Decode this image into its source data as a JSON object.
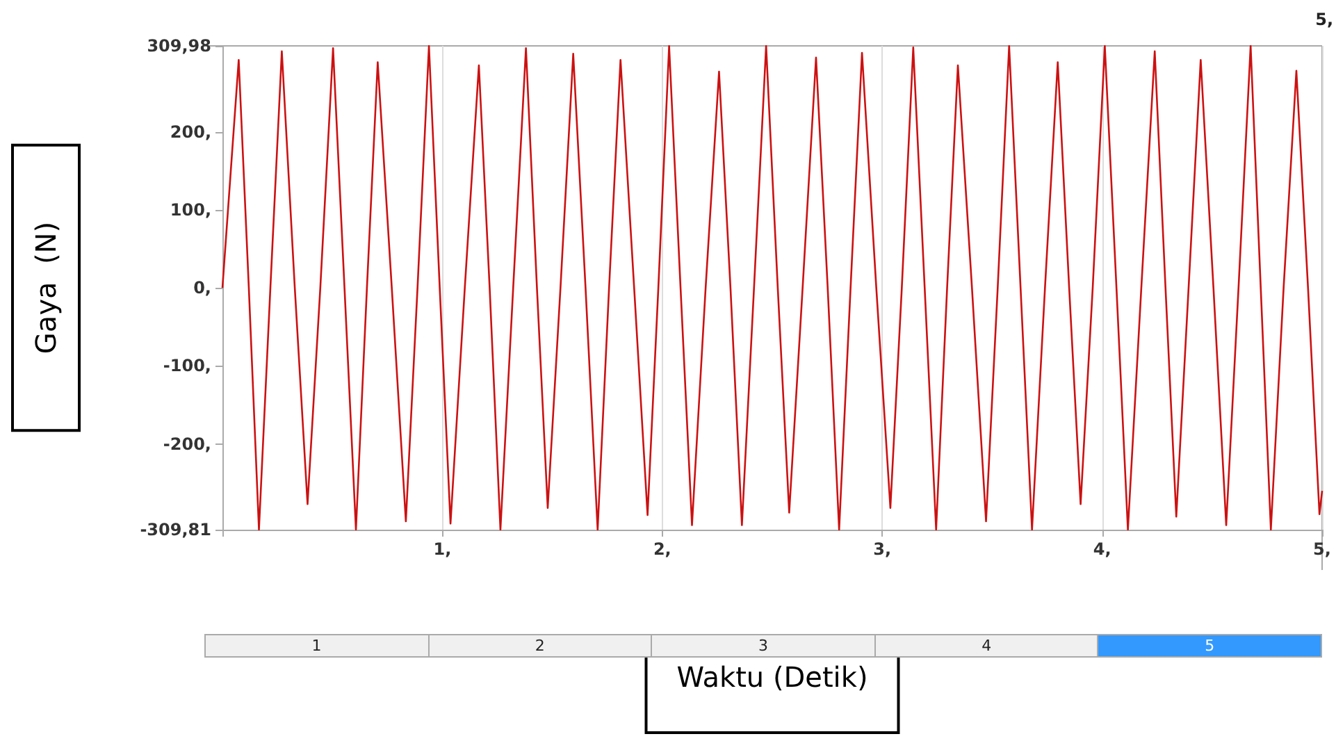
{
  "chart_data": {
    "type": "line",
    "xlabel": "Waktu (Detik)",
    "ylabel": "Gaya  (N)",
    "annotations": [
      "5,",
      "1",
      "2",
      "3",
      "4",
      "5"
    ],
    "xlim": [
      0,
      5
    ],
    "xticks": [
      {
        "value": 0,
        "label": null
      },
      {
        "value": 1,
        "label": "1,"
      },
      {
        "value": 2,
        "label": "2,"
      },
      {
        "value": 3,
        "label": "3,"
      },
      {
        "value": 4,
        "label": "4,"
      },
      {
        "value": 5,
        "label": "5,"
      }
    ],
    "ylim": [
      -309.81,
      309.98
    ],
    "yticks": [
      {
        "value": -309.81,
        "label": "-309,81"
      },
      {
        "value": -200,
        "label": "-200,"
      },
      {
        "value": -100,
        "label": "-100,"
      },
      {
        "value": 0,
        "label": "0,"
      },
      {
        "value": 100,
        "label": "100,"
      },
      {
        "value": 200,
        "label": "200,"
      },
      {
        "value": 309.98,
        "label": "309,98"
      }
    ],
    "grid": "x",
    "marker": "none",
    "line_style": "solid",
    "series": [
      {
        "color": "#cc1111",
        "x": [
          0,
          0.074,
          0.12,
          0.166,
          0.218,
          0.27,
          0.329,
          0.387,
          0.445,
          0.503,
          0.555,
          0.607,
          0.657,
          0.706,
          0.77,
          0.834,
          0.887,
          0.939,
          0.988,
          1.037,
          1.102,
          1.166,
          1.215,
          1.264,
          1.322,
          1.38,
          1.43,
          1.479,
          1.537,
          1.595,
          1.651,
          1.706,
          1.758,
          1.81,
          1.872,
          1.933,
          1.982,
          2.031,
          2.083,
          2.135,
          2.197,
          2.258,
          2.31,
          2.362,
          2.417,
          2.472,
          2.525,
          2.577,
          2.638,
          2.699,
          2.752,
          2.804,
          2.856,
          2.908,
          2.973,
          3.037,
          3.089,
          3.141,
          3.193,
          3.245,
          3.295,
          3.344,
          3.408,
          3.472,
          3.525,
          3.577,
          3.629,
          3.681,
          3.74,
          3.798,
          3.85,
          3.902,
          3.957,
          4.012,
          4.065,
          4.117,
          4.178,
          4.239,
          4.288,
          4.337,
          4.393,
          4.448,
          4.506,
          4.564,
          4.62,
          4.675,
          4.721,
          4.767,
          4.825,
          4.883,
          4.936,
          4.988,
          5.0
        ],
        "values": [
          0,
          292,
          0,
          -309.81,
          0,
          303,
          0,
          -277,
          0,
          307,
          0,
          -309.81,
          0,
          289,
          0,
          -299,
          0,
          309.98,
          0,
          -302,
          0,
          285,
          0,
          -309.81,
          0,
          307,
          0,
          -282,
          0,
          300,
          0,
          -309.81,
          0,
          292,
          0,
          -291,
          0,
          309.98,
          0,
          -304,
          0,
          277,
          0,
          -304,
          0,
          309.98,
          0,
          -288,
          0,
          295,
          0,
          -309.81,
          0,
          301,
          0,
          -282,
          0,
          308,
          0,
          -309.81,
          0,
          285,
          0,
          -299,
          0,
          309.98,
          0,
          -309.81,
          0,
          289,
          0,
          -277,
          0,
          309.98,
          0,
          -309.81,
          0,
          303,
          0,
          -293,
          0,
          292,
          0,
          -304,
          0,
          309.98,
          0,
          -309.81,
          0,
          278,
          0,
          -290,
          -260
        ]
      }
    ]
  }
}
